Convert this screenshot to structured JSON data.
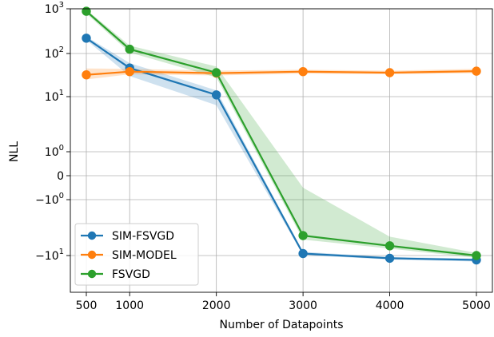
{
  "chart_data": {
    "type": "line",
    "title": "",
    "xlabel": "Number of Datapoints",
    "ylabel": "NLL",
    "yscale": "symlog",
    "x": [
      500,
      1000,
      2000,
      3000,
      4000,
      5000
    ],
    "x_ticks": [
      "500",
      "1000",
      "2000",
      "3000",
      "4000",
      "5000"
    ],
    "y_ticks": [
      {
        "label": "10",
        "exp": "3",
        "value": 1000
      },
      {
        "label": "10",
        "exp": "2",
        "value": 100
      },
      {
        "label": "10",
        "exp": "1",
        "value": 10
      },
      {
        "label": "10",
        "exp": "0",
        "value": 1
      },
      {
        "label": "0",
        "exp": "",
        "value": 0
      },
      {
        "label": "−10",
        "exp": "0",
        "value": -1
      },
      {
        "label": "−10",
        "exp": "1",
        "value": -10
      }
    ],
    "grid": true,
    "legend_position": "lower-left",
    "series": [
      {
        "name": "SIM-FSVGD",
        "color": "#1f77b4",
        "values": [
          220,
          46,
          11,
          -9.2,
          -11.2,
          -12
        ],
        "band_low": [
          200,
          30,
          7,
          -9.8,
          -11.8,
          -12.8
        ],
        "band_high": [
          240,
          60,
          14,
          -8.6,
          -10.6,
          -11.3
        ]
      },
      {
        "name": "SIM-MODEL",
        "color": "#ff7f0e",
        "values": [
          32,
          38,
          35,
          38,
          36,
          39
        ],
        "band_low": [
          25,
          33,
          31,
          34,
          33,
          35
        ],
        "band_high": [
          45,
          44,
          40,
          42,
          40,
          44
        ]
      },
      {
        "name": "FSVGD",
        "color": "#2ca02c",
        "values": [
          880,
          125,
          36,
          -4.4,
          -6.7,
          -10
        ],
        "band_low": [
          780,
          105,
          28,
          -5.2,
          -7.5,
          -11
        ],
        "band_high": [
          960,
          150,
          50,
          -0.5,
          -4.6,
          -9
        ]
      }
    ]
  }
}
